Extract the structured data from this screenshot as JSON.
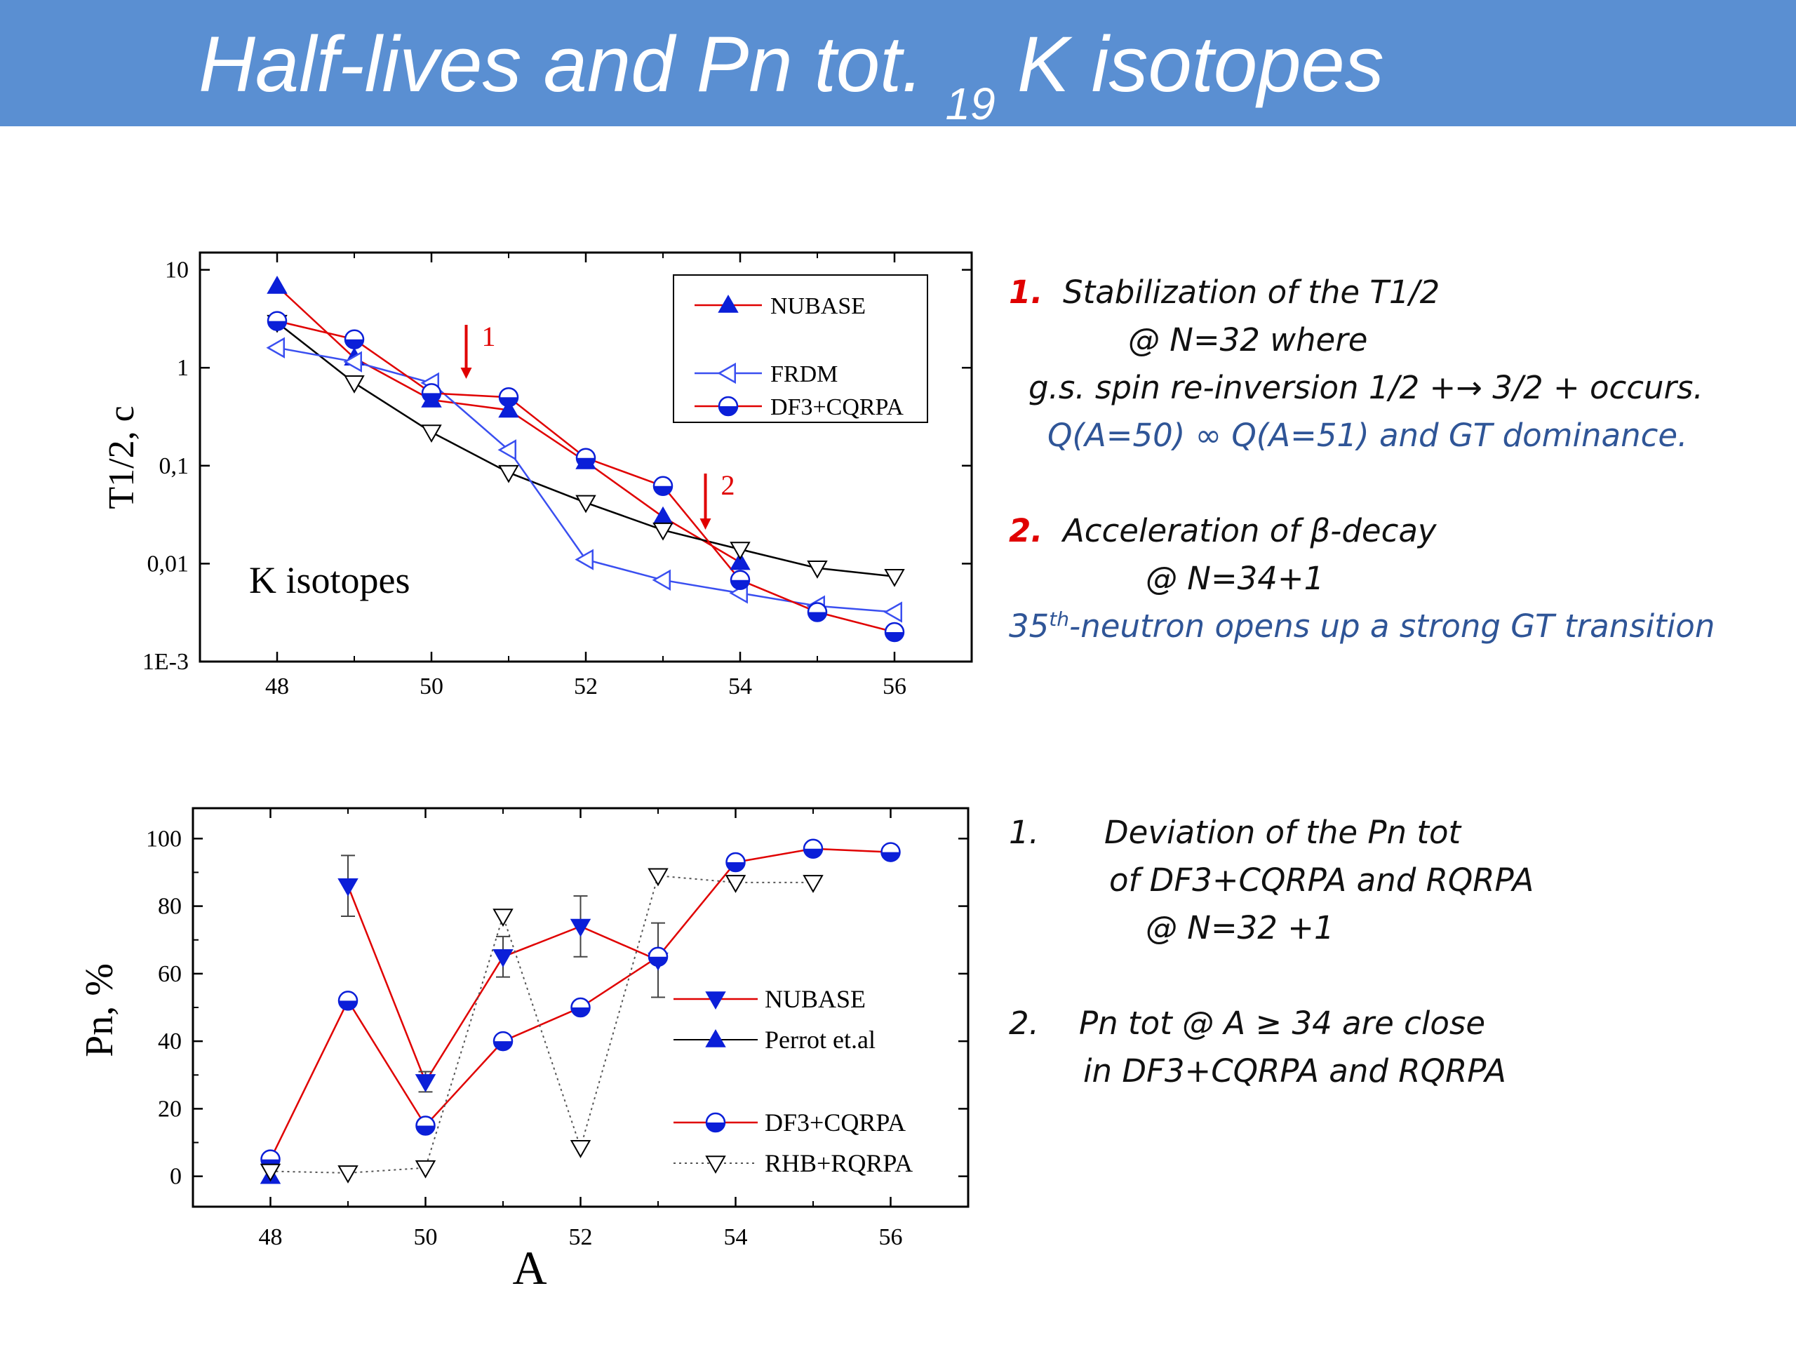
{
  "title": {
    "main": "Half-lives and Pn tot.",
    "sub": "19",
    "tail": "K isotopes"
  },
  "colors": {
    "header": "#5a8fd2",
    "red": "#e00000",
    "blue": "#2f5597",
    "nubase": "#0b1fd8",
    "frdm": "#3a4ff0",
    "black": "#000000"
  },
  "chart_data": [
    {
      "type": "line",
      "ylabel": "T1/2, c",
      "annotation": "K isotopes",
      "xlim": [
        47,
        57
      ],
      "log": true,
      "ylim": [
        0.001,
        15
      ],
      "xticks": [
        "48",
        "50",
        "52",
        "54",
        "56"
      ],
      "xtick_values": [
        48,
        50,
        52,
        54,
        56
      ],
      "yticks": [
        "10",
        "1",
        "0,1",
        "0,01",
        "1E-3"
      ],
      "ytick_values": [
        10,
        1,
        0.1,
        0.01,
        0.001
      ],
      "legend_placement": "top-right",
      "arrows": [
        {
          "label": "1",
          "x": 50.45
        },
        {
          "label": "2",
          "x": 53.55
        }
      ],
      "series": [
        {
          "name": "NUBASE",
          "marker": "triangle-up-filled",
          "color": "#0b1fd8",
          "line_color": "#e00000",
          "x": [
            48,
            49,
            50,
            51,
            52,
            53,
            54
          ],
          "y": [
            6.8,
            1.26,
            0.47,
            0.37,
            0.11,
            0.03,
            0.0103
          ]
        },
        {
          "name": "",
          "marker": "triangle-down-open",
          "color": "#000000",
          "line_color": "#000000",
          "x": [
            48,
            49,
            50,
            51,
            52,
            53,
            54,
            55,
            56
          ],
          "y": [
            2.9,
            0.7,
            0.22,
            0.085,
            0.042,
            0.022,
            0.014,
            0.009,
            0.0074
          ]
        },
        {
          "name": "FRDM",
          "marker": "triangle-left-open",
          "color": "#3a4ff0",
          "line_color": "#3a4ff0",
          "x": [
            48,
            49,
            50,
            51,
            52,
            53,
            54,
            55,
            56
          ],
          "y": [
            1.6,
            1.15,
            0.7,
            0.145,
            0.011,
            0.0068,
            0.005,
            0.0037,
            0.0032
          ]
        },
        {
          "name": "DF3+CQRPA",
          "marker": "circle-half-filled",
          "color": "#0b1fd8",
          "line_color": "#e00000",
          "x": [
            48,
            49,
            50,
            51,
            52,
            53,
            54,
            55,
            56
          ],
          "y": [
            3.0,
            1.95,
            0.55,
            0.5,
            0.12,
            0.062,
            0.0068,
            0.0032,
            0.002
          ]
        }
      ]
    },
    {
      "type": "line",
      "xlabel": "A",
      "ylabel": "Pn,  %",
      "xlim": [
        47,
        57
      ],
      "ylim": [
        -9,
        109
      ],
      "xticks": [
        "48",
        "50",
        "52",
        "54",
        "56"
      ],
      "xtick_values": [
        48,
        50,
        52,
        54,
        56
      ],
      "yticks": [
        "0",
        "20",
        "40",
        "60",
        "80",
        "100"
      ],
      "ytick_values": [
        0,
        20,
        40,
        60,
        80,
        100
      ],
      "legend_placement": "bottom-right",
      "series": [
        {
          "name": "NUBASE",
          "marker": "triangle-down-filled",
          "color": "#0b1fd8",
          "line_color": "#e00000",
          "x": [
            49,
            50,
            51,
            52,
            53
          ],
          "y": [
            86,
            28,
            65,
            74,
            64
          ],
          "err": [
            9,
            3,
            6,
            9,
            11
          ]
        },
        {
          "name": "Perrot et.al",
          "marker": "triangle-up-filled",
          "color": "#0b1fd8",
          "line_color": "#000000",
          "x": [
            48
          ],
          "y": [
            0
          ]
        },
        {
          "name": "DF3+CQRPA",
          "marker": "circle-half-filled",
          "color": "#0b1fd8",
          "line_color": "#e00000",
          "x": [
            48,
            49,
            50,
            51,
            52,
            53,
            54,
            55,
            56
          ],
          "y": [
            5,
            52,
            15,
            40,
            50,
            65,
            93,
            97,
            96
          ]
        },
        {
          "name": "RHB+RQRPA",
          "marker": "triangle-down-open",
          "color": "#000000",
          "line_color": "#555555",
          "x": [
            48,
            49,
            50,
            51,
            52,
            53,
            54,
            55
          ],
          "y": [
            1.5,
            1,
            2.5,
            77,
            8.5,
            89,
            87,
            87
          ]
        }
      ]
    }
  ],
  "notes_top": {
    "n1": "1.",
    "l1": "Stabilization of the T1/2",
    "l2": "@  N=32 where",
    "l3": "g.s. spin re-inversion 1/2 +→ 3/2 + occurs.",
    "l4": "Q(A=50) ∞ Q(A=51)  and  GT dominance.",
    "n2": "2.",
    "l5": "Acceleration of  β-decay",
    "l6": "@  N=34+1",
    "l7a": "35",
    "l7sup": "th",
    "l7b": "-neutron opens up a strong GT transition"
  },
  "notes_bottom": {
    "n1": "1.",
    "l1": "Deviation of the Pn tot",
    "l2": "of DF3+CQRPA and RQRPA",
    "l3": "@  N=32 +1",
    "n2": "2.",
    "l4": "Pn tot  @ A ≥ 34 are  close",
    "l5": "in DF3+CQRPA and RQRPA"
  }
}
